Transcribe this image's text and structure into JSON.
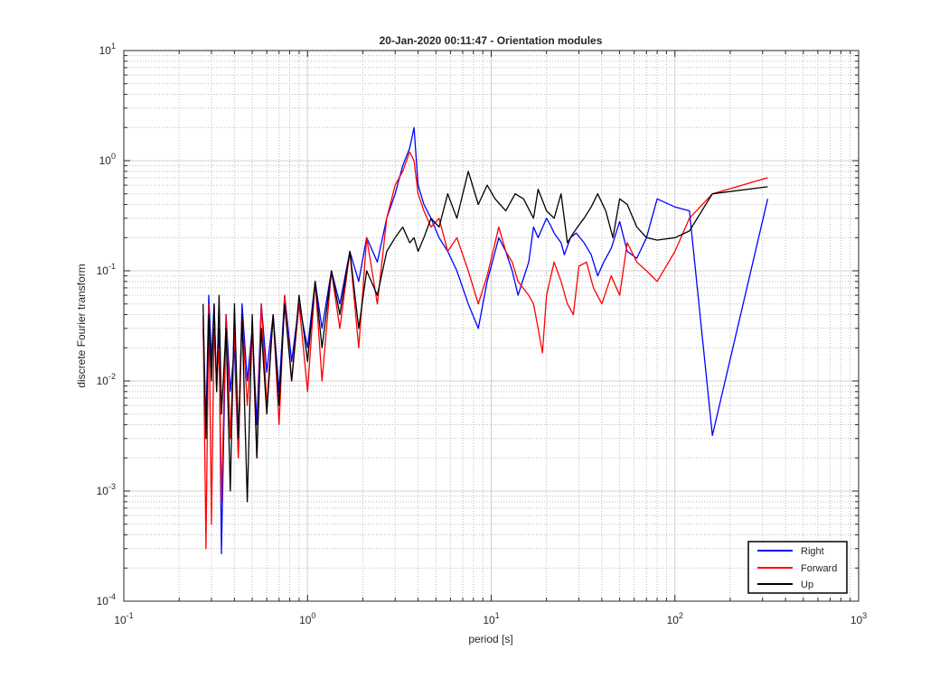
{
  "figure": {
    "background": "#ffffff"
  },
  "chart_data": {
    "type": "line",
    "title": "20-Jan-2020 00:11:47 - Orientation modules",
    "xlabel": "period [s]",
    "ylabel": "discrete Fourier transform",
    "xscale": "log",
    "yscale": "log",
    "xlim": [
      0.1,
      1000
    ],
    "ylim": [
      0.0001,
      10
    ],
    "xticks": [
      {
        "base": "10",
        "exp": "-1"
      },
      {
        "base": "10",
        "exp": "0"
      },
      {
        "base": "10",
        "exp": "1"
      },
      {
        "base": "10",
        "exp": "2"
      },
      {
        "base": "10",
        "exp": "3"
      }
    ],
    "yticks": [
      {
        "base": "10",
        "exp": "-4"
      },
      {
        "base": "10",
        "exp": "-3"
      },
      {
        "base": "10",
        "exp": "-2"
      },
      {
        "base": "10",
        "exp": "-1"
      },
      {
        "base": "10",
        "exp": "0"
      },
      {
        "base": "10",
        "exp": "1"
      }
    ],
    "grid": true,
    "minor_grid": true,
    "legend_position": "bottom-right",
    "series": [
      {
        "name": "Right",
        "color": "#0000ff",
        "x": [
          0.27,
          0.28,
          0.29,
          0.3,
          0.31,
          0.32,
          0.33,
          0.34,
          0.36,
          0.38,
          0.4,
          0.42,
          0.44,
          0.47,
          0.5,
          0.53,
          0.56,
          0.6,
          0.65,
          0.7,
          0.75,
          0.82,
          0.9,
          1.0,
          1.1,
          1.2,
          1.35,
          1.5,
          1.7,
          1.9,
          2.1,
          2.4,
          2.7,
          3.0,
          3.3,
          3.6,
          3.8,
          4.0,
          4.3,
          4.7,
          5.2,
          5.8,
          6.5,
          7.5,
          8.5,
          9.5,
          11,
          12,
          13,
          14,
          16,
          17,
          18,
          20,
          21,
          22,
          24,
          25,
          27,
          29,
          32,
          35,
          38,
          41,
          45,
          50,
          55,
          62,
          70,
          80,
          100,
          120,
          160,
          320
        ],
        "y": [
          0.03,
          0.004,
          0.06,
          0.015,
          0.05,
          0.008,
          0.03,
          0.00027,
          0.04,
          0.008,
          0.02,
          0.002,
          0.05,
          0.01,
          0.03,
          0.004,
          0.05,
          0.012,
          0.04,
          0.008,
          0.06,
          0.015,
          0.05,
          0.02,
          0.08,
          0.03,
          0.1,
          0.05,
          0.15,
          0.08,
          0.2,
          0.12,
          0.3,
          0.5,
          0.9,
          1.3,
          2.0,
          0.6,
          0.4,
          0.3,
          0.2,
          0.15,
          0.1,
          0.05,
          0.03,
          0.08,
          0.2,
          0.15,
          0.1,
          0.06,
          0.12,
          0.25,
          0.2,
          0.3,
          0.26,
          0.22,
          0.18,
          0.14,
          0.2,
          0.22,
          0.18,
          0.14,
          0.09,
          0.12,
          0.16,
          0.28,
          0.15,
          0.13,
          0.2,
          0.45,
          0.38,
          0.35,
          0.0032,
          0.45
        ]
      },
      {
        "name": "Forward",
        "color": "#ff0000",
        "x": [
          0.27,
          0.28,
          0.29,
          0.3,
          0.31,
          0.32,
          0.33,
          0.34,
          0.36,
          0.38,
          0.4,
          0.42,
          0.44,
          0.47,
          0.5,
          0.53,
          0.56,
          0.6,
          0.65,
          0.7,
          0.75,
          0.82,
          0.9,
          1.0,
          1.1,
          1.2,
          1.35,
          1.5,
          1.7,
          1.9,
          2.1,
          2.4,
          2.7,
          3.0,
          3.3,
          3.6,
          3.8,
          4.0,
          4.3,
          4.7,
          5.2,
          5.8,
          6.5,
          7.5,
          8.5,
          9.5,
          11,
          12,
          13,
          14,
          16,
          17,
          18,
          19,
          20,
          22,
          24,
          26,
          28,
          30,
          33,
          36,
          40,
          45,
          50,
          55,
          62,
          70,
          80,
          100,
          120,
          160,
          320
        ],
        "y": [
          0.04,
          0.0003,
          0.05,
          0.0005,
          0.03,
          0.01,
          0.02,
          0.0008,
          0.04,
          0.003,
          0.03,
          0.002,
          0.04,
          0.006,
          0.03,
          0.002,
          0.05,
          0.006,
          0.04,
          0.004,
          0.06,
          0.01,
          0.05,
          0.008,
          0.08,
          0.01,
          0.1,
          0.03,
          0.15,
          0.02,
          0.2,
          0.05,
          0.3,
          0.6,
          0.8,
          1.2,
          1.0,
          0.5,
          0.35,
          0.25,
          0.3,
          0.15,
          0.2,
          0.1,
          0.05,
          0.09,
          0.25,
          0.15,
          0.12,
          0.08,
          0.06,
          0.05,
          0.03,
          0.018,
          0.06,
          0.12,
          0.08,
          0.05,
          0.04,
          0.11,
          0.12,
          0.07,
          0.05,
          0.09,
          0.06,
          0.18,
          0.12,
          0.1,
          0.08,
          0.15,
          0.3,
          0.5,
          0.7
        ]
      },
      {
        "name": "Up",
        "color": "#000000",
        "x": [
          0.27,
          0.28,
          0.29,
          0.3,
          0.31,
          0.32,
          0.33,
          0.34,
          0.36,
          0.38,
          0.4,
          0.42,
          0.44,
          0.47,
          0.5,
          0.53,
          0.56,
          0.6,
          0.65,
          0.7,
          0.75,
          0.82,
          0.9,
          1.0,
          1.1,
          1.2,
          1.35,
          1.5,
          1.7,
          1.9,
          2.1,
          2.4,
          2.7,
          3.0,
          3.3,
          3.6,
          3.8,
          4.0,
          4.3,
          4.7,
          5.2,
          5.8,
          6.5,
          7.5,
          8.5,
          9.5,
          10.5,
          12,
          13.5,
          15,
          17,
          18,
          20,
          22,
          24,
          26,
          28,
          30,
          32,
          35,
          38,
          42,
          46,
          50,
          55,
          62,
          70,
          80,
          100,
          120,
          160,
          320
        ],
        "y": [
          0.05,
          0.003,
          0.04,
          0.01,
          0.05,
          0.008,
          0.06,
          0.005,
          0.03,
          0.001,
          0.05,
          0.003,
          0.04,
          0.0008,
          0.04,
          0.002,
          0.03,
          0.005,
          0.04,
          0.006,
          0.05,
          0.01,
          0.06,
          0.015,
          0.08,
          0.02,
          0.1,
          0.04,
          0.15,
          0.03,
          0.1,
          0.06,
          0.15,
          0.2,
          0.25,
          0.18,
          0.2,
          0.15,
          0.2,
          0.3,
          0.25,
          0.5,
          0.3,
          0.8,
          0.4,
          0.6,
          0.45,
          0.35,
          0.5,
          0.45,
          0.3,
          0.55,
          0.35,
          0.3,
          0.5,
          0.18,
          0.22,
          0.26,
          0.3,
          0.38,
          0.5,
          0.35,
          0.2,
          0.45,
          0.4,
          0.25,
          0.2,
          0.19,
          0.2,
          0.23,
          0.5,
          0.58
        ]
      }
    ]
  }
}
